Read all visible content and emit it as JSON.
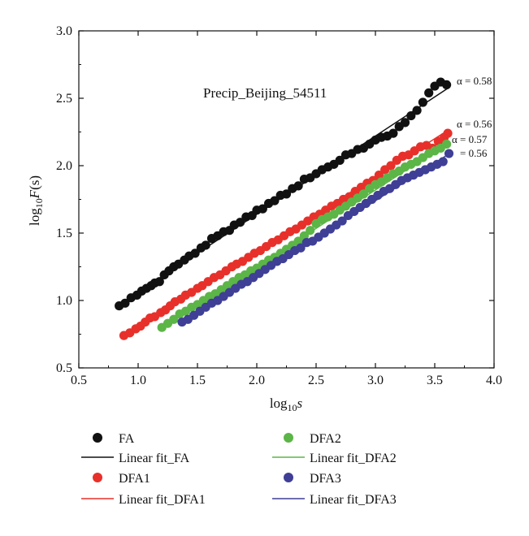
{
  "chart_data": {
    "type": "scatter",
    "title": "Precip_Beijing_54511",
    "xlabel": {
      "base": "log",
      "sub": "10",
      "var": "s"
    },
    "ylabel": {
      "base": "log",
      "sub": "10",
      "var": "F",
      "arg": "(s)"
    },
    "xlim": [
      0.5,
      4.0
    ],
    "ylim": [
      0.5,
      3.0
    ],
    "xticks": [
      "0.5",
      "1.0",
      "1.5",
      "2.0",
      "2.5",
      "3.0",
      "3.5",
      "4.0"
    ],
    "yticks": [
      "0.5",
      "1.0",
      "1.5",
      "2.0",
      "2.5",
      "3.0"
    ],
    "grid": false,
    "legend_position": "bottom",
    "series": [
      {
        "name": "FA",
        "color": "#111111",
        "fit_name": "Linear fit_FA",
        "fit_color": "#111111",
        "alpha": "α = 0.58",
        "fit": {
          "slope": 0.58,
          "intercept": 0.48,
          "x0": 0.85,
          "x1": 3.62
        },
        "x": [
          0.84,
          0.89,
          0.94,
          0.99,
          1.03,
          1.07,
          1.11,
          1.14,
          1.18,
          1.22,
          1.26,
          1.3,
          1.34,
          1.39,
          1.43,
          1.48,
          1.53,
          1.57,
          1.62,
          1.67,
          1.72,
          1.77,
          1.81,
          1.86,
          1.91,
          1.96,
          2.0,
          2.05,
          2.1,
          2.15,
          2.2,
          2.25,
          2.3,
          2.35,
          2.4,
          2.45,
          2.5,
          2.55,
          2.6,
          2.65,
          2.7,
          2.75,
          2.8,
          2.85,
          2.9,
          2.95,
          3.0,
          3.05,
          3.1,
          3.15,
          3.2,
          3.25,
          3.3,
          3.35,
          3.4,
          3.45,
          3.5,
          3.55,
          3.6
        ],
        "y": [
          0.96,
          0.98,
          1.02,
          1.04,
          1.07,
          1.09,
          1.11,
          1.13,
          1.14,
          1.19,
          1.22,
          1.25,
          1.27,
          1.3,
          1.33,
          1.35,
          1.39,
          1.41,
          1.46,
          1.48,
          1.51,
          1.52,
          1.56,
          1.58,
          1.62,
          1.63,
          1.67,
          1.68,
          1.72,
          1.74,
          1.78,
          1.79,
          1.83,
          1.85,
          1.9,
          1.91,
          1.94,
          1.97,
          1.99,
          2.01,
          2.04,
          2.08,
          2.09,
          2.12,
          2.13,
          2.16,
          2.19,
          2.21,
          2.22,
          2.24,
          2.29,
          2.32,
          2.37,
          2.41,
          2.47,
          2.54,
          2.59,
          2.62,
          2.6
        ]
      },
      {
        "name": "DFA1",
        "color": "#e8302a",
        "fit_name": "Linear fit_DFA1",
        "fit_color": "#e8302a",
        "alpha": "α = 0.56",
        "fit": {
          "slope": 0.56,
          "intercept": 0.24,
          "x0": 0.9,
          "x1": 3.62
        },
        "x": [
          0.88,
          0.93,
          0.98,
          1.02,
          1.06,
          1.1,
          1.14,
          1.19,
          1.23,
          1.27,
          1.31,
          1.36,
          1.4,
          1.45,
          1.5,
          1.54,
          1.59,
          1.64,
          1.69,
          1.74,
          1.79,
          1.83,
          1.88,
          1.93,
          1.98,
          2.03,
          2.08,
          2.13,
          2.18,
          2.23,
          2.28,
          2.33,
          2.38,
          2.43,
          2.48,
          2.53,
          2.58,
          2.63,
          2.68,
          2.73,
          2.78,
          2.83,
          2.88,
          2.93,
          2.98,
          3.03,
          3.08,
          3.13,
          3.18,
          3.23,
          3.28,
          3.33,
          3.38,
          3.43,
          3.48,
          3.53,
          3.58,
          3.61
        ],
        "y": [
          0.74,
          0.76,
          0.79,
          0.81,
          0.84,
          0.87,
          0.88,
          0.91,
          0.93,
          0.96,
          0.99,
          1.01,
          1.04,
          1.06,
          1.09,
          1.11,
          1.14,
          1.17,
          1.19,
          1.22,
          1.25,
          1.27,
          1.29,
          1.32,
          1.35,
          1.37,
          1.4,
          1.43,
          1.45,
          1.48,
          1.51,
          1.53,
          1.56,
          1.59,
          1.62,
          1.64,
          1.67,
          1.7,
          1.72,
          1.75,
          1.77,
          1.81,
          1.84,
          1.87,
          1.89,
          1.93,
          1.97,
          2.0,
          2.04,
          2.07,
          2.08,
          2.11,
          2.14,
          2.15,
          2.13,
          2.18,
          2.21,
          2.24
        ]
      },
      {
        "name": "DFA2",
        "color": "#5cb547",
        "fit_name": "Linear fit_DFA2",
        "fit_color": "#5cb547",
        "alpha": "α = 0.57",
        "fit": {
          "slope": 0.57,
          "intercept": 0.11,
          "x0": 1.2,
          "x1": 3.62
        },
        "x": [
          1.2,
          1.25,
          1.3,
          1.35,
          1.4,
          1.45,
          1.5,
          1.55,
          1.6,
          1.65,
          1.7,
          1.75,
          1.8,
          1.85,
          1.9,
          1.95,
          2.0,
          2.05,
          2.1,
          2.15,
          2.2,
          2.25,
          2.3,
          2.35,
          2.4,
          2.45,
          2.5,
          2.55,
          2.6,
          2.65,
          2.7,
          2.75,
          2.8,
          2.85,
          2.9,
          2.95,
          3.0,
          3.05,
          3.1,
          3.15,
          3.2,
          3.25,
          3.3,
          3.35,
          3.4,
          3.45,
          3.5,
          3.55,
          3.6
        ],
        "y": [
          0.8,
          0.83,
          0.86,
          0.9,
          0.92,
          0.95,
          0.97,
          1.0,
          1.03,
          1.05,
          1.08,
          1.11,
          1.14,
          1.17,
          1.19,
          1.22,
          1.24,
          1.27,
          1.3,
          1.32,
          1.35,
          1.38,
          1.41,
          1.44,
          1.48,
          1.52,
          1.57,
          1.6,
          1.62,
          1.64,
          1.67,
          1.7,
          1.73,
          1.76,
          1.79,
          1.83,
          1.86,
          1.88,
          1.91,
          1.94,
          1.96,
          1.99,
          2.01,
          2.03,
          2.06,
          2.09,
          2.11,
          2.13,
          2.16
        ]
      },
      {
        "name": "DFA3",
        "color": "#3f3f96",
        "fit_name": "Linear fit_DFA3",
        "fit_color": "#3f3f96",
        "alpha": "= 0.56",
        "fit": {
          "slope": 0.56,
          "intercept": 0.06,
          "x0": 1.35,
          "x1": 3.65
        },
        "x": [
          1.37,
          1.42,
          1.47,
          1.52,
          1.57,
          1.62,
          1.67,
          1.72,
          1.77,
          1.82,
          1.87,
          1.92,
          1.97,
          2.02,
          2.07,
          2.12,
          2.17,
          2.22,
          2.27,
          2.32,
          2.37,
          2.42,
          2.47,
          2.52,
          2.57,
          2.62,
          2.67,
          2.72,
          2.77,
          2.82,
          2.87,
          2.92,
          2.97,
          3.02,
          3.07,
          3.12,
          3.17,
          3.22,
          3.27,
          3.32,
          3.37,
          3.42,
          3.47,
          3.52,
          3.57,
          3.62
        ],
        "y": [
          0.84,
          0.86,
          0.89,
          0.92,
          0.95,
          0.98,
          1.0,
          1.03,
          1.06,
          1.09,
          1.12,
          1.14,
          1.17,
          1.2,
          1.23,
          1.26,
          1.29,
          1.31,
          1.34,
          1.37,
          1.39,
          1.43,
          1.44,
          1.47,
          1.5,
          1.53,
          1.56,
          1.59,
          1.63,
          1.66,
          1.69,
          1.72,
          1.75,
          1.78,
          1.81,
          1.83,
          1.86,
          1.89,
          1.91,
          1.93,
          1.95,
          1.97,
          1.99,
          2.01,
          2.03,
          2.09
        ]
      }
    ]
  }
}
